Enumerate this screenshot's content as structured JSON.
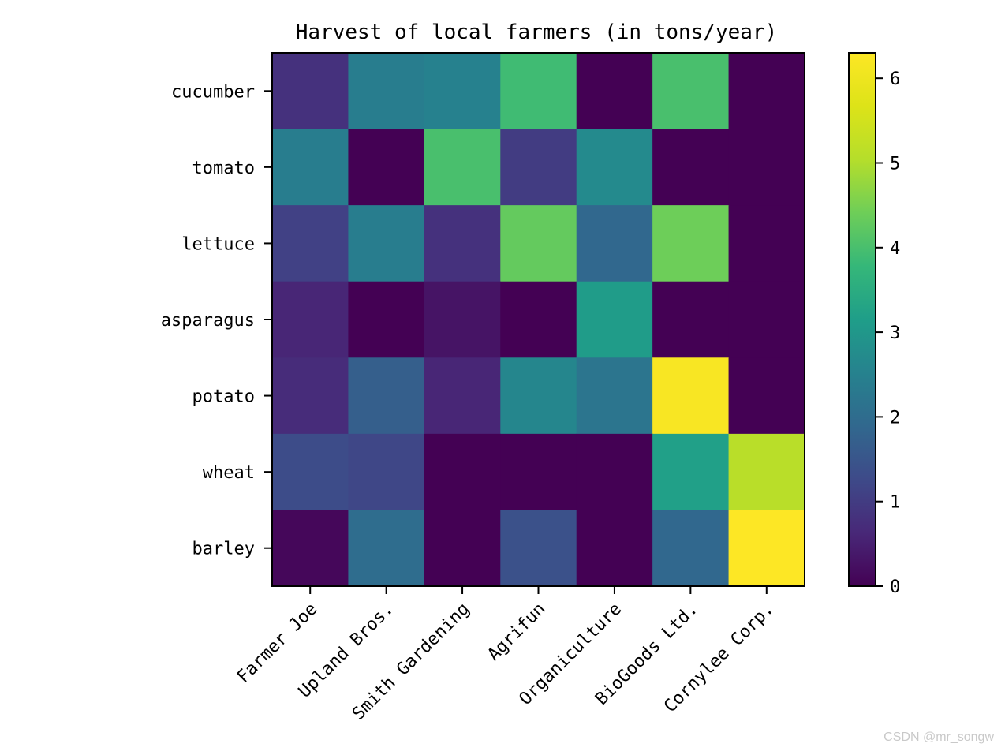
{
  "watermark": "CSDN @mr_songw",
  "chart_data": {
    "type": "heatmap",
    "title": "Harvest of local farmers (in tons/year)",
    "xlabel": "",
    "ylabel": "",
    "colormap": "viridis",
    "x_categories": [
      "Farmer Joe",
      "Upland Bros.",
      "Smith Gardening",
      "Agrifun",
      "Organiculture",
      "BioGoods Ltd.",
      "Cornylee Corp."
    ],
    "y_categories": [
      "cucumber",
      "tomato",
      "lettuce",
      "asparagus",
      "potato",
      "wheat",
      "barley"
    ],
    "values": [
      [
        0.8,
        2.4,
        2.5,
        3.9,
        0.0,
        4.0,
        0.0
      ],
      [
        2.4,
        0.0,
        4.0,
        1.0,
        2.7,
        0.0,
        0.0
      ],
      [
        1.1,
        2.4,
        0.8,
        4.3,
        1.9,
        4.4,
        0.0
      ],
      [
        0.6,
        0.0,
        0.3,
        0.0,
        3.1,
        0.0,
        0.0
      ],
      [
        0.7,
        1.7,
        0.6,
        2.6,
        2.2,
        6.2,
        0.0
      ],
      [
        1.3,
        1.2,
        0.0,
        0.0,
        0.0,
        3.2,
        5.1
      ],
      [
        0.1,
        2.0,
        0.0,
        1.4,
        0.0,
        1.9,
        6.3
      ]
    ],
    "vmin": 0,
    "vmax": 6.3,
    "colorbar_ticks": [
      0,
      1,
      2,
      3,
      4,
      5,
      6
    ],
    "grid": false
  }
}
